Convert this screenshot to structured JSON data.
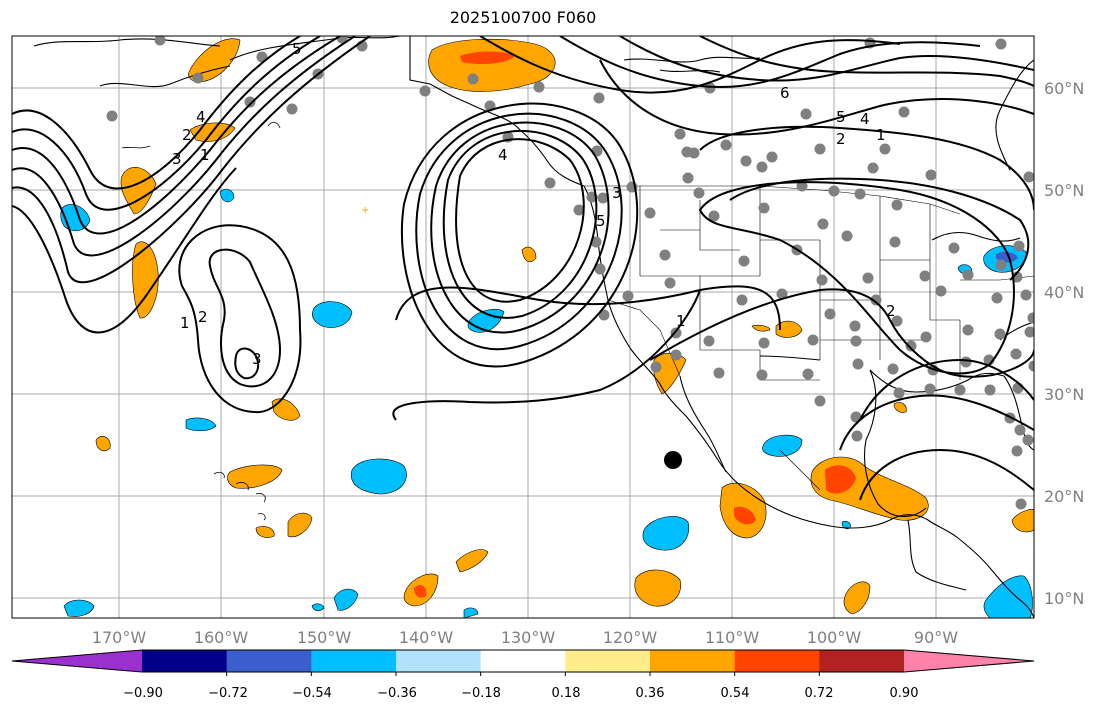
{
  "title": "2025100700 F060",
  "map": {
    "lon_range": [
      -180,
      -78
    ],
    "lat_range": [
      8,
      65
    ],
    "longitude_labels": [
      "170°W",
      "160°W",
      "150°W",
      "140°W",
      "130°W",
      "120°W",
      "110°W",
      "100°W",
      "90°W"
    ],
    "latitude_labels": [
      "10°N",
      "20°N",
      "30°N",
      "40°N",
      "50°N",
      "60°N"
    ],
    "grid": true,
    "coastline_color": "#000000"
  },
  "contour_lines": {
    "color": "#000000",
    "levels": [
      "1",
      "2",
      "3",
      "4",
      "5",
      "6"
    ]
  },
  "colorbar": {
    "ticks": [
      "−0.90",
      "−0.72",
      "−0.54",
      "−0.36",
      "−0.18",
      "0.18",
      "0.36",
      "0.54",
      "0.72",
      "0.90"
    ],
    "colors": [
      "#9b30d0",
      "#00008b",
      "#3a5fcd",
      "#00bfff",
      "#b0e2ff",
      "#ffffff",
      "#ffec8b",
      "#ffa500",
      "#ff4500",
      "#b22222",
      "#ff82ab"
    ],
    "extend": "both"
  },
  "legend_colors": {
    "positive_light": "#ffa500",
    "positive_strong": "#ff4500",
    "negative_light": "#00bfff",
    "station_dot": "#808080",
    "marker": "#000000"
  }
}
